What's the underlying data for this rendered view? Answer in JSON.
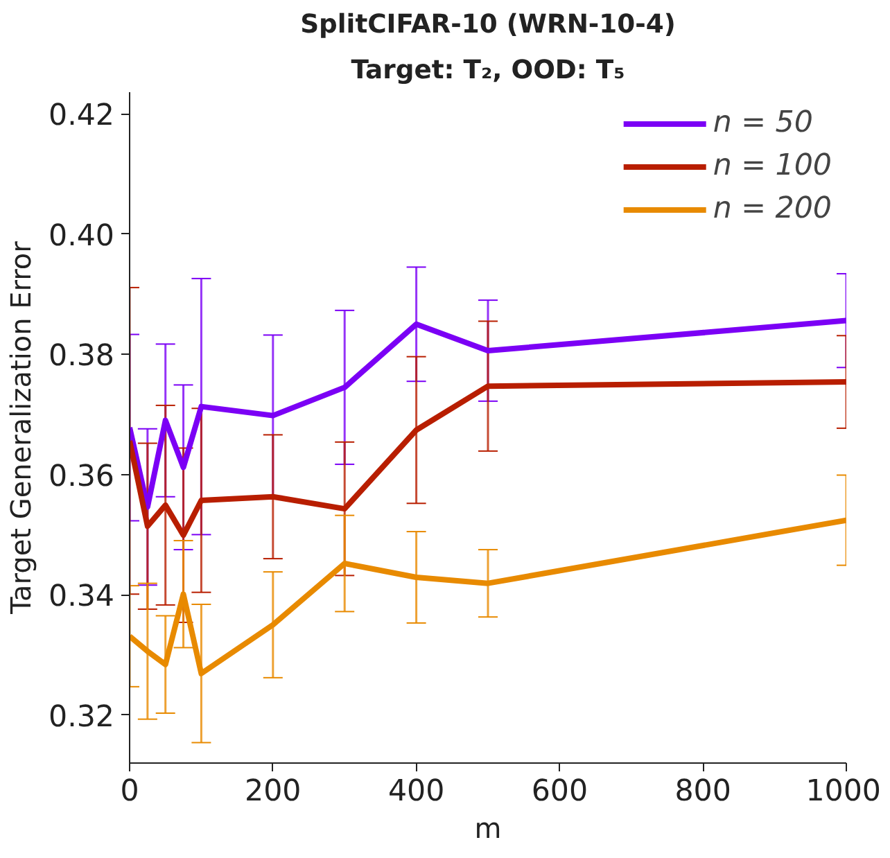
{
  "chart_data": {
    "type": "line",
    "title": "SplitCIFAR-10 (WRN-10-4)",
    "subtitle": "Target: T₂, OOD: T₅",
    "xlabel": "m",
    "ylabel": "Target Generalization Error",
    "x": [
      0,
      25,
      50,
      75,
      100,
      200,
      300,
      400,
      500,
      1000
    ],
    "series": [
      {
        "name": "n = 50",
        "color": "#7b00f5",
        "values": [
          0.3678,
          0.3546,
          0.369,
          0.3612,
          0.3713,
          0.3698,
          0.3745,
          0.385,
          0.3806,
          0.3856
        ],
        "errors": [
          0.0155,
          0.013,
          0.0127,
          0.0137,
          0.0213,
          0.0134,
          0.0128,
          0.0095,
          0.0084,
          0.0078
        ]
      },
      {
        "name": "n = 100",
        "color": "#b81e00",
        "values": [
          0.3656,
          0.3514,
          0.3549,
          0.3499,
          0.3557,
          0.3563,
          0.3543,
          0.3674,
          0.3747,
          0.3754
        ],
        "errors": [
          0.0255,
          0.0138,
          0.0166,
          0.0145,
          0.0153,
          0.0103,
          0.0111,
          0.0122,
          0.0108,
          0.0077
        ]
      },
      {
        "name": "n = 200",
        "color": "#e88a00",
        "values": [
          0.3331,
          0.3306,
          0.3284,
          0.3401,
          0.3269,
          0.335,
          0.3452,
          0.3429,
          0.3419,
          0.3524
        ],
        "errors": [
          0.0084,
          0.0113,
          0.0081,
          0.0089,
          0.0115,
          0.0088,
          0.008,
          0.0076,
          0.0056,
          0.0075
        ]
      }
    ],
    "xlim": [
      0,
      1000
    ],
    "ylim": [
      0.312,
      0.4236
    ],
    "xticks": [
      0,
      200,
      400,
      600,
      800,
      1000
    ],
    "yticks": [
      {
        "value": 0.32,
        "label": "0.32"
      },
      {
        "value": 0.34,
        "label": "0.34"
      },
      {
        "value": 0.36,
        "label": "0.36"
      },
      {
        "value": 0.38,
        "label": "0.38"
      },
      {
        "value": 0.4,
        "label": "0.40"
      },
      {
        "value": 0.42,
        "label": "0.42"
      }
    ],
    "grid": false,
    "legend": "top right",
    "line_style": "solid"
  }
}
